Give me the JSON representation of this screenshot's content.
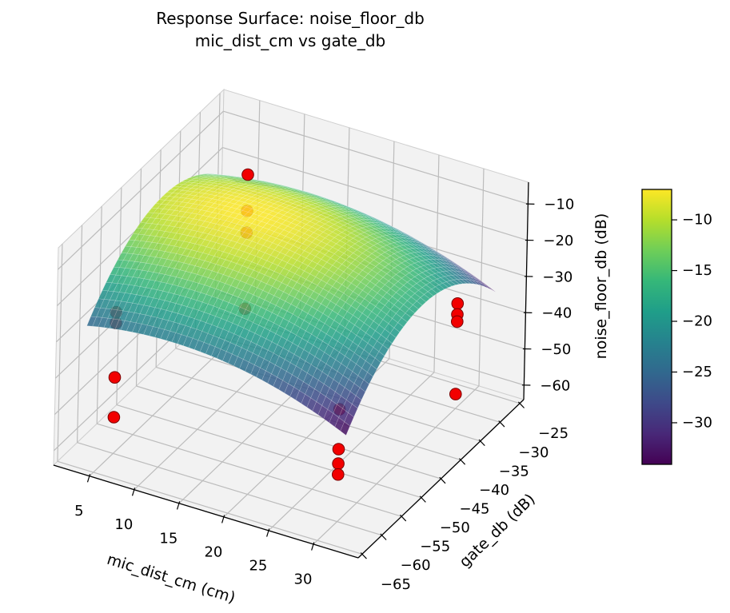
{
  "title": {
    "line1": "Response Surface: noise_floor_db",
    "line2": "mic_dist_cm vs gate_db"
  },
  "chart_data": {
    "type": "surface3d",
    "title": "Response Surface: noise_floor_db\nmic_dist_cm vs gate_db",
    "x_axis": {
      "label": "mic_dist_cm (cm)",
      "ticks": [
        5,
        10,
        15,
        20,
        25,
        30
      ],
      "range": [
        1,
        35
      ]
    },
    "y_axis": {
      "label": "gate_db (dB)",
      "ticks": [
        -25,
        -30,
        -35,
        -40,
        -45,
        -50,
        -55,
        -60,
        -65
      ],
      "range": [
        -66,
        -24
      ]
    },
    "z_axis": {
      "label": "noise_floor_db (dB)",
      "ticks": [
        -10,
        -20,
        -30,
        -40,
        -50,
        -60
      ],
      "range": [
        -64,
        -4
      ]
    },
    "colorbar": {
      "colormap": "viridis",
      "ticks": [
        -10,
        -15,
        -20,
        -25,
        -30
      ],
      "vmin": -34.1,
      "vmax": -7.0
    },
    "surface_model": {
      "description": "fitted quadratic response surface: z = z0 - ax*(x-xc)^2 - by*(y-yc)^2",
      "z0": -7.0,
      "ax": 0.029,
      "by": 0.0446,
      "xc": 13,
      "yc": -45,
      "x_domain": [
        3.5,
        32.5
      ],
      "y_domain": [
        -64,
        -26
      ]
    },
    "scatter": {
      "color": "#f20000",
      "marker": "circle",
      "points": [
        [
          5,
          -60,
          -25
        ],
        [
          5,
          -60,
          -28
        ],
        [
          5,
          -60,
          -43
        ],
        [
          5,
          -60,
          -54
        ],
        [
          9,
          -36,
          -9
        ],
        [
          9,
          -36,
          -19
        ],
        [
          9,
          -36,
          -25
        ],
        [
          9,
          -36,
          -46
        ],
        [
          30,
          -60,
          -33
        ],
        [
          30,
          -60,
          -44
        ],
        [
          30,
          -60,
          -48
        ],
        [
          30,
          -60,
          -51
        ],
        [
          30,
          -30,
          -35
        ],
        [
          30,
          -30,
          -38
        ],
        [
          30,
          -30,
          -40
        ],
        [
          30,
          -30,
          -60
        ]
      ]
    }
  }
}
